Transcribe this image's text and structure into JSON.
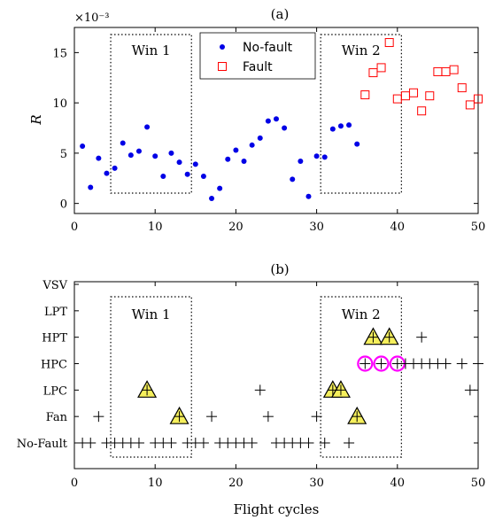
{
  "chart_data": [
    {
      "panel": "(a)",
      "type": "scatter",
      "ylabel": "R",
      "y_exponent": "×10⁻³",
      "xlim": [
        0,
        50
      ],
      "ylim": [
        -1,
        17.5
      ],
      "xticks": [
        0,
        10,
        20,
        30,
        40,
        50
      ],
      "yticks": [
        0,
        5,
        10,
        15
      ],
      "windows": [
        {
          "label": "Win 1",
          "x": [
            4.5,
            14.5
          ]
        },
        {
          "label": "Win 2",
          "x": [
            30.5,
            40.5
          ]
        }
      ],
      "legend": {
        "placement": "top-center",
        "entries": [
          "No-fault",
          "Fault"
        ]
      },
      "series": [
        {
          "name": "No-fault",
          "marker": "dot",
          "color": "#0000e6",
          "points": [
            [
              1,
              5.7
            ],
            [
              2,
              1.6
            ],
            [
              3,
              4.5
            ],
            [
              4,
              3.0
            ],
            [
              5,
              3.5
            ],
            [
              6,
              6.0
            ],
            [
              7,
              4.8
            ],
            [
              8,
              5.2
            ],
            [
              9,
              7.6
            ],
            [
              10,
              4.7
            ],
            [
              11,
              2.7
            ],
            [
              12,
              5.0
            ],
            [
              13,
              4.1
            ],
            [
              14,
              2.9
            ],
            [
              15,
              3.9
            ],
            [
              16,
              2.7
            ],
            [
              17,
              0.5
            ],
            [
              18,
              1.5
            ],
            [
              19,
              4.4
            ],
            [
              20,
              5.3
            ],
            [
              21,
              4.2
            ],
            [
              22,
              5.8
            ],
            [
              23,
              6.5
            ],
            [
              24,
              8.2
            ],
            [
              25,
              8.4
            ],
            [
              26,
              7.5
            ],
            [
              27,
              2.4
            ],
            [
              28,
              4.2
            ],
            [
              29,
              0.7
            ],
            [
              30,
              4.7
            ],
            [
              31,
              4.6
            ],
            [
              32,
              7.4
            ],
            [
              33,
              7.7
            ],
            [
              34,
              7.8
            ],
            [
              35,
              5.9
            ]
          ]
        },
        {
          "name": "Fault",
          "marker": "square",
          "color": "#ff0000",
          "points": [
            [
              36,
              10.8
            ],
            [
              37,
              13.0
            ],
            [
              38,
              13.5
            ],
            [
              39,
              16.0
            ],
            [
              40,
              10.4
            ],
            [
              41,
              10.7
            ],
            [
              42,
              11.0
            ],
            [
              43,
              9.2
            ],
            [
              44,
              10.7
            ],
            [
              45,
              13.1
            ],
            [
              46,
              13.1
            ],
            [
              47,
              13.3
            ],
            [
              48,
              11.5
            ],
            [
              49,
              9.8
            ],
            [
              50,
              10.4
            ]
          ]
        }
      ]
    },
    {
      "panel": "(b)",
      "type": "scatter",
      "xlabel": "Flight cycles",
      "xlim": [
        0,
        50
      ],
      "xticks": [
        0,
        10,
        20,
        30,
        40,
        50
      ],
      "categories": [
        "No-Fault",
        "Fan",
        "LPC",
        "HPC",
        "HPT",
        "LPT",
        "VSV"
      ],
      "windows": [
        {
          "label": "Win 1",
          "x": [
            4.5,
            14.5
          ]
        },
        {
          "label": "Win 2",
          "x": [
            30.5,
            40.5
          ]
        }
      ],
      "plus_marks": [
        {
          "category": "No-Fault",
          "x": [
            1,
            2,
            4,
            5,
            6,
            7,
            8,
            10,
            11,
            12,
            14,
            15,
            16,
            18,
            19,
            20,
            21,
            22,
            25,
            26,
            27,
            28,
            29,
            31,
            34
          ]
        },
        {
          "category": "Fan",
          "x": [
            3,
            13,
            17,
            24,
            30,
            35
          ]
        },
        {
          "category": "LPC",
          "x": [
            9,
            23,
            32,
            33,
            49
          ]
        },
        {
          "category": "HPC",
          "x": [
            36,
            38,
            40,
            41,
            42,
            43,
            44,
            45,
            46,
            48,
            50
          ]
        },
        {
          "category": "HPT",
          "x": [
            37,
            39,
            43
          ]
        }
      ],
      "triangle_marks": [
        {
          "category": "LPC",
          "x": [
            9,
            32,
            33
          ]
        },
        {
          "category": "Fan",
          "x": [
            13,
            35
          ]
        },
        {
          "category": "HPT",
          "x": [
            37,
            39
          ]
        }
      ],
      "circle_marks": [
        {
          "category": "HPC",
          "x": [
            36,
            38,
            40
          ]
        }
      ],
      "colors": {
        "triangle_fill": "#f5ef5c",
        "circle": "#ff00ff"
      }
    }
  ]
}
